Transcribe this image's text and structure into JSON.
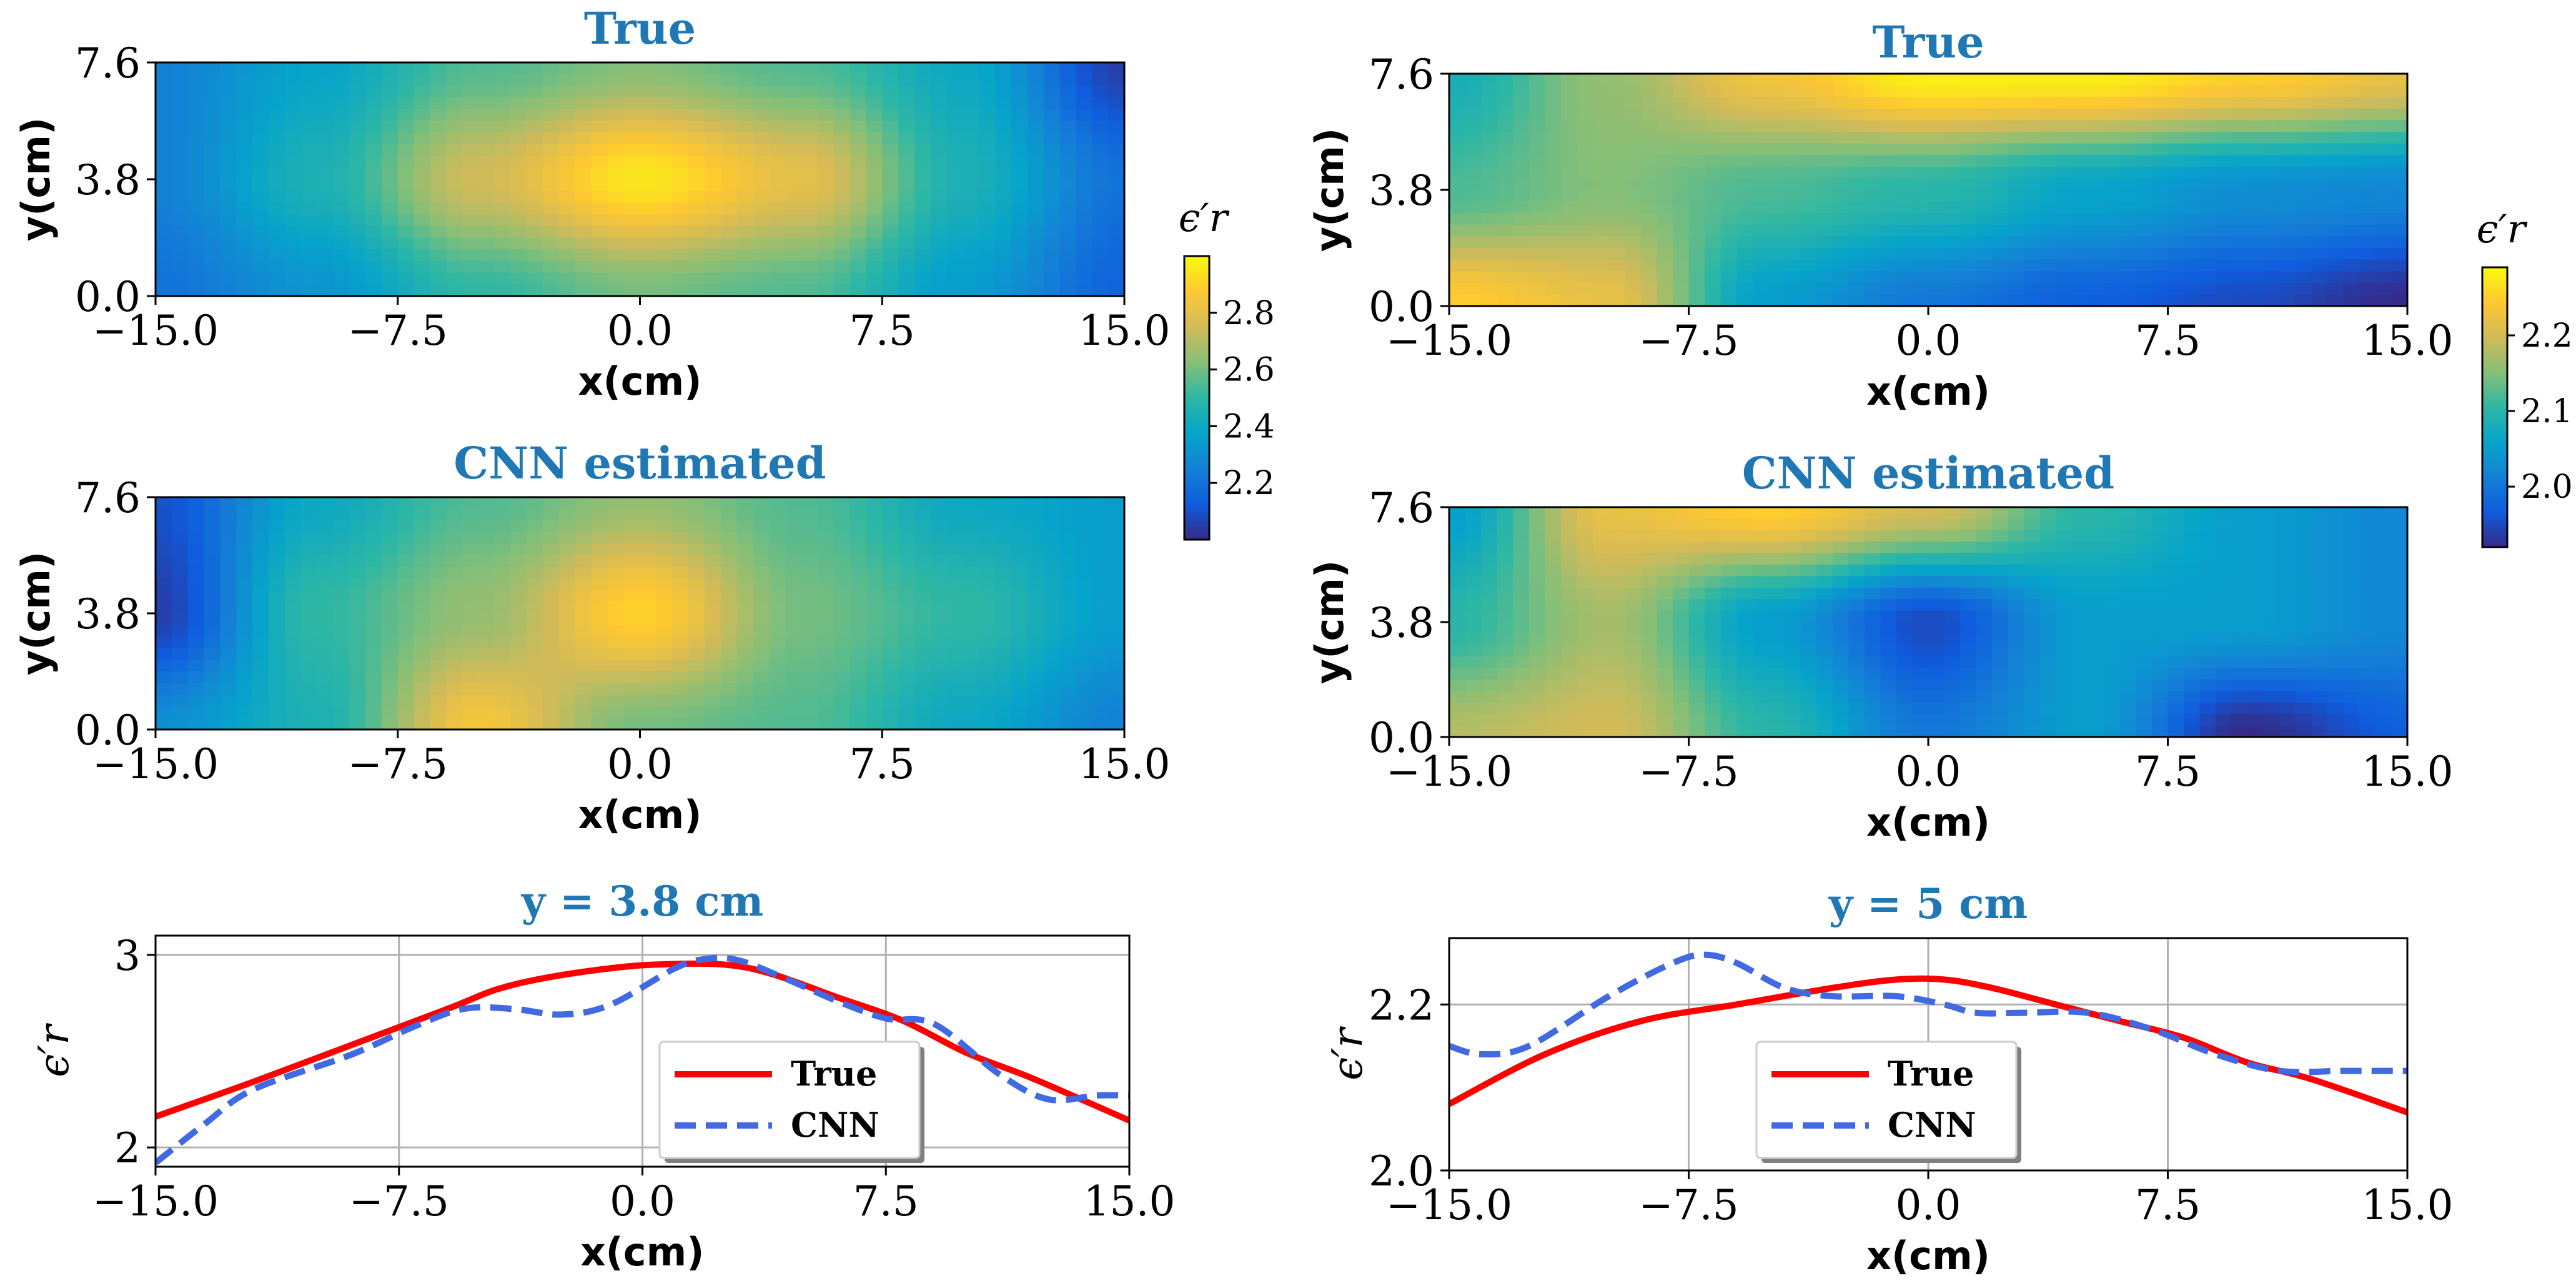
{
  "chart_data": [
    {
      "type": "heatmap",
      "panel": "left-top",
      "title": "True",
      "xlabel": "x(cm)",
      "ylabel": "y(cm)",
      "xlim": [
        -15.0,
        15.0
      ],
      "ylim": [
        0.0,
        7.6
      ],
      "xticks": [
        "−15.0",
        "−7.5",
        "0.0",
        "7.5",
        "15.0"
      ],
      "yticks": [
        "0.0",
        "3.8",
        "7.6"
      ],
      "x": [
        -15,
        -10,
        -5,
        0,
        5,
        10,
        15
      ],
      "y": [
        0.0,
        3.8,
        7.6
      ],
      "z": [
        [
          2.2,
          2.32,
          2.5,
          2.6,
          2.55,
          2.35,
          2.15
        ],
        [
          2.25,
          2.45,
          2.75,
          2.95,
          2.8,
          2.45,
          2.2
        ],
        [
          2.25,
          2.38,
          2.55,
          2.62,
          2.55,
          2.4,
          2.05
        ]
      ]
    },
    {
      "type": "heatmap",
      "panel": "left-middle",
      "title": "CNN estimated",
      "xlabel": "x(cm)",
      "ylabel": "y(cm)",
      "xlim": [
        -15.0,
        15.0
      ],
      "ylim": [
        0.0,
        7.6
      ],
      "xticks": [
        "−15.0",
        "−7.5",
        "0.0",
        "7.5",
        "15.0"
      ],
      "yticks": [
        "0.0",
        "3.8",
        "7.6"
      ],
      "x": [
        -15,
        -10,
        -5,
        0,
        5,
        10,
        15
      ],
      "y": [
        0.0,
        3.8,
        7.6
      ],
      "z": [
        [
          2.3,
          2.45,
          2.85,
          2.6,
          2.55,
          2.4,
          2.25
        ],
        [
          2.05,
          2.5,
          2.65,
          2.9,
          2.6,
          2.5,
          2.35
        ],
        [
          2.1,
          2.4,
          2.55,
          2.65,
          2.55,
          2.4,
          2.35
        ]
      ]
    },
    {
      "type": "heatmap",
      "panel": "right-top",
      "title": "True",
      "xlabel": "x(cm)",
      "ylabel": "y(cm)",
      "xlim": [
        -15.0,
        15.0
      ],
      "ylim": [
        0.0,
        7.6
      ],
      "xticks": [
        "−15.0",
        "−7.5",
        "0.0",
        "7.5",
        "15.0"
      ],
      "yticks": [
        "0.0",
        "3.8",
        "7.6"
      ],
      "x": [
        -15,
        -10,
        -5,
        0,
        5,
        10,
        15
      ],
      "y": [
        0.0,
        3.8,
        7.6
      ],
      "z": [
        [
          2.25,
          2.22,
          2.05,
          2.0,
          1.97,
          1.95,
          1.92
        ],
        [
          2.12,
          2.15,
          2.12,
          2.1,
          2.06,
          2.03,
          2.02
        ],
        [
          2.08,
          2.16,
          2.23,
          2.28,
          2.28,
          2.25,
          2.22
        ]
      ]
    },
    {
      "type": "heatmap",
      "panel": "right-middle",
      "title": "CNN estimated",
      "xlabel": "x(cm)",
      "ylabel": "y(cm)",
      "xlim": [
        -15.0,
        15.0
      ],
      "ylim": [
        0.0,
        7.6
      ],
      "xticks": [
        "−15.0",
        "−7.5",
        "0.0",
        "7.5",
        "15.0"
      ],
      "yticks": [
        "0.0",
        "3.8",
        "7.6"
      ],
      "x": [
        -15,
        -10,
        -5,
        0,
        5,
        10,
        15
      ],
      "y": [
        0.0,
        3.8,
        7.6
      ],
      "z": [
        [
          2.18,
          2.2,
          2.1,
          2.0,
          2.05,
          1.92,
          1.97
        ],
        [
          2.1,
          2.17,
          2.05,
          1.95,
          2.05,
          2.05,
          2.02
        ],
        [
          2.05,
          2.22,
          2.25,
          2.2,
          2.1,
          2.05,
          2.02
        ]
      ]
    },
    {
      "type": "colorbar",
      "panel": "left",
      "label": "ϵ′r",
      "range": [
        2.0,
        3.0
      ],
      "ticks": [
        "2.2",
        "2.4",
        "2.6",
        "2.8"
      ],
      "tick_values": [
        2.2,
        2.4,
        2.6,
        2.8
      ]
    },
    {
      "type": "colorbar",
      "panel": "right",
      "label": "ϵ′r",
      "range": [
        1.92,
        2.29
      ],
      "ticks": [
        "2.0",
        "2.1",
        "2.2"
      ],
      "tick_values": [
        2.0,
        2.1,
        2.2
      ]
    },
    {
      "type": "line",
      "panel": "left-bottom",
      "title": "y = 3.8 cm",
      "xlabel": "x(cm)",
      "ylabel": "ϵ′r",
      "xlim": [
        -15.0,
        15.0
      ],
      "ylim": [
        1.9,
        3.1
      ],
      "xticks": [
        "−15.0",
        "−7.5",
        "0.0",
        "7.5",
        "15.0"
      ],
      "yticks": [
        "2",
        "3"
      ],
      "ytick_values": [
        2,
        3
      ],
      "legend": "lower-center",
      "series": [
        {
          "name": "True",
          "color": "#ff0000",
          "dash": "solid",
          "x": [
            -15,
            -12,
            -9,
            -6,
            -4.5,
            -3,
            -1,
            0.5,
            2.5,
            4,
            6,
            8,
            10,
            12,
            15
          ],
          "y": [
            2.16,
            2.34,
            2.53,
            2.72,
            2.82,
            2.88,
            2.93,
            2.95,
            2.95,
            2.9,
            2.78,
            2.66,
            2.49,
            2.36,
            2.14
          ]
        },
        {
          "name": "CNN",
          "color": "#4169e1",
          "dash": "dashed",
          "x": [
            -15,
            -13.5,
            -12,
            -9,
            -7,
            -5.5,
            -4,
            -2.5,
            -1,
            1,
            2,
            3,
            4.5,
            6,
            7.5,
            9,
            11,
            12.5,
            14,
            15
          ],
          "y": [
            1.92,
            2.12,
            2.3,
            2.48,
            2.63,
            2.72,
            2.72,
            2.69,
            2.74,
            2.93,
            2.98,
            2.97,
            2.87,
            2.76,
            2.67,
            2.64,
            2.38,
            2.25,
            2.27,
            2.27
          ]
        }
      ]
    },
    {
      "type": "line",
      "panel": "right-bottom",
      "title": "y = 5 cm",
      "xlabel": "x(cm)",
      "ylabel": "ϵ′r",
      "xlim": [
        -15.0,
        15.0
      ],
      "ylim": [
        2.0,
        2.28
      ],
      "xticks": [
        "−15.0",
        "−7.5",
        "0.0",
        "7.5",
        "15.0"
      ],
      "yticks": [
        "2.0",
        "2.2"
      ],
      "ytick_values": [
        2.0,
        2.2
      ],
      "legend": "lower-center",
      "series": [
        {
          "name": "True",
          "color": "#ff0000",
          "dash": "solid",
          "x": [
            -15,
            -12,
            -9,
            -6,
            -3,
            -1,
            0.5,
            2,
            4,
            6,
            8,
            10,
            12,
            15
          ],
          "y": [
            2.08,
            2.14,
            2.18,
            2.2,
            2.22,
            2.23,
            2.23,
            2.22,
            2.2,
            2.18,
            2.16,
            2.13,
            2.11,
            2.07
          ]
        },
        {
          "name": "CNN",
          "color": "#4169e1",
          "dash": "dashed",
          "x": [
            -15,
            -14,
            -12.5,
            -10,
            -8,
            -7,
            -6,
            -4.5,
            -3,
            -1,
            0.5,
            1.5,
            3,
            5,
            7,
            9,
            11,
            13,
            15
          ],
          "y": [
            2.15,
            2.14,
            2.15,
            2.21,
            2.25,
            2.26,
            2.25,
            2.22,
            2.21,
            2.21,
            2.2,
            2.19,
            2.19,
            2.19,
            2.17,
            2.14,
            2.12,
            2.12,
            2.12
          ]
        }
      ]
    }
  ]
}
